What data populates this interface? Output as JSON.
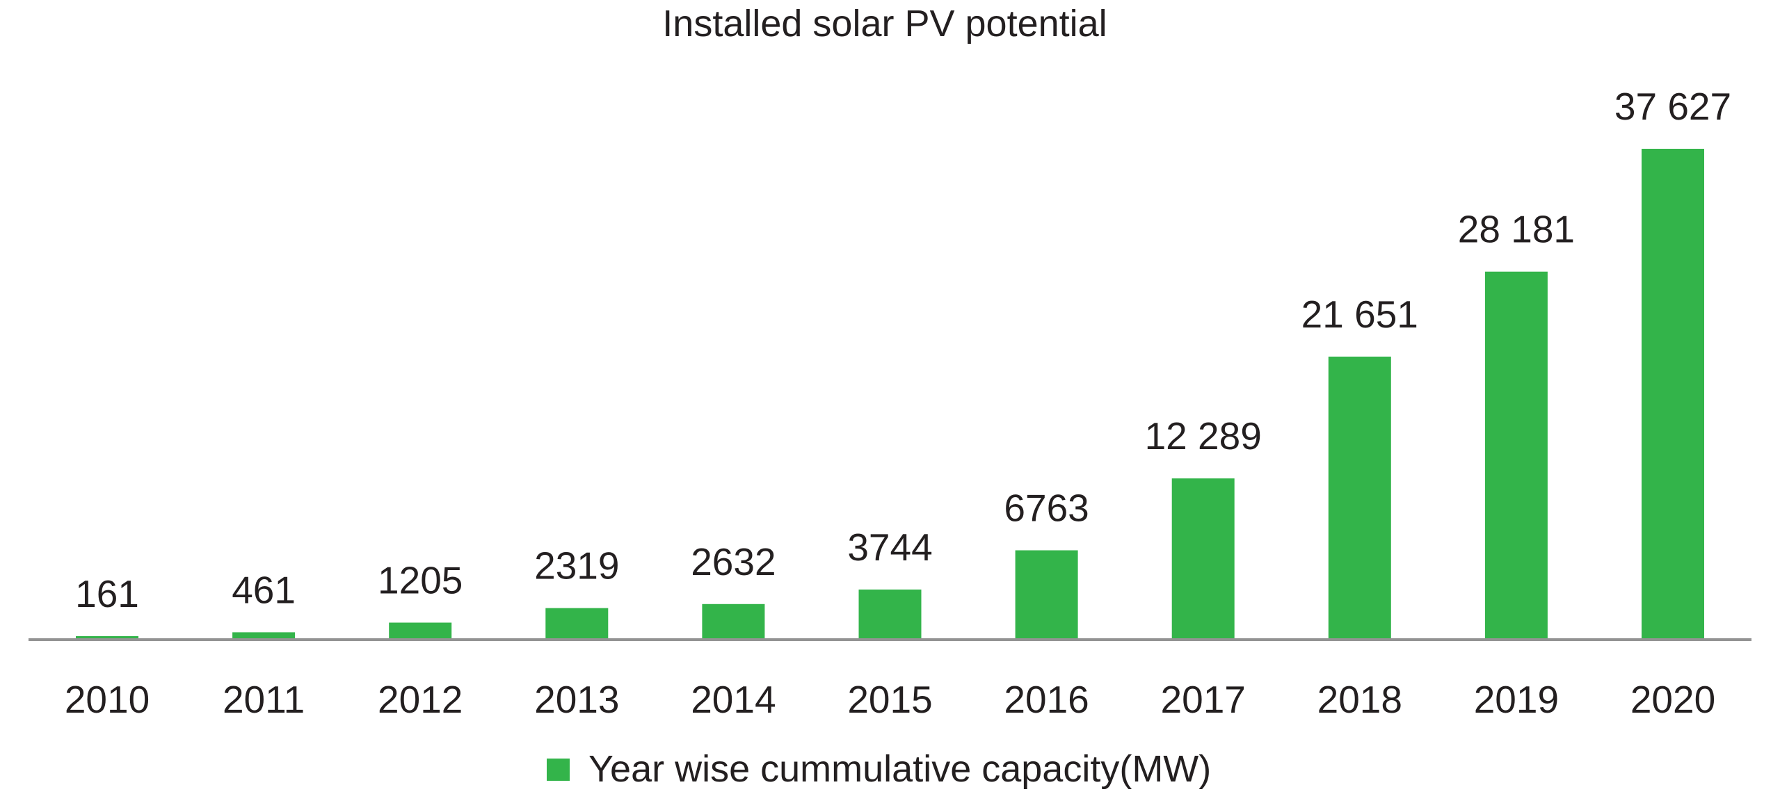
{
  "chart_data": {
    "type": "bar",
    "title": "Installed solar PV potential",
    "xlabel": "",
    "ylabel": "",
    "categories": [
      "2010",
      "2011",
      "2012",
      "2013",
      "2014",
      "2015",
      "2016",
      "2017",
      "2018",
      "2019",
      "2020"
    ],
    "series": [
      {
        "name": "Year wise cummulative capacity(MW)",
        "values": [
          161,
          461,
          1205,
          2319,
          2632,
          3744,
          6763,
          12289,
          21651,
          28181,
          37627
        ],
        "value_labels": [
          "161",
          "461",
          "1205",
          "2319",
          "2632",
          "3744",
          "6763",
          "12 289",
          "21 651",
          "28 181",
          "37 627"
        ],
        "color": "#33b44a"
      }
    ],
    "ylim": [
      0,
      37627
    ],
    "grid": false,
    "y_axis_visible": false,
    "axis_color": "#939393",
    "legend": {
      "position": "bottom",
      "entries": [
        "Year wise cummulative capacity(MW)"
      ]
    }
  }
}
